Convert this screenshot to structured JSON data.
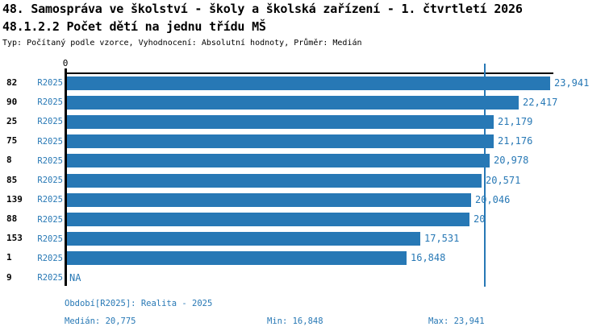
{
  "header": {
    "title": "48. Samospráva ve školství - školy a školská zařízení - 1. čtvrtletí 2026",
    "subtitle": "48.1.2.2 Počet dětí na jednu třídu MŠ",
    "meta": "Typ: Počítaný podle vzorce, Vyhodnocení: Absolutní hodnoty, Průměr: Medián"
  },
  "chart_data": {
    "type": "bar",
    "orientation": "horizontal",
    "title": "48.1.2.2 Počet dětí na jednu třídu MŠ",
    "x_axis": {
      "origin_label": "0",
      "min": 0,
      "max": 24200,
      "grid": false
    },
    "legend_position": "none",
    "categories": [
      "82",
      "90",
      "25",
      "75",
      "8",
      "85",
      "139",
      "88",
      "153",
      "1",
      "9"
    ],
    "rows": [
      {
        "category": "82",
        "period": "R2025",
        "value": 23941,
        "label": "23,941"
      },
      {
        "category": "90",
        "period": "R2025",
        "value": 22417,
        "label": "22,417"
      },
      {
        "category": "25",
        "period": "R2025",
        "value": 21179,
        "label": "21,179"
      },
      {
        "category": "75",
        "period": "R2025",
        "value": 21176,
        "label": "21,176"
      },
      {
        "category": "8",
        "period": "R2025",
        "value": 20978,
        "label": "20,978"
      },
      {
        "category": "85",
        "period": "R2025",
        "value": 20571,
        "label": "20,571"
      },
      {
        "category": "139",
        "period": "R2025",
        "value": 20046,
        "label": "20,046"
      },
      {
        "category": "88",
        "period": "R2025",
        "value": 19965,
        "label": "20"
      },
      {
        "category": "153",
        "period": "R2025",
        "value": 17531,
        "label": "17,531"
      },
      {
        "category": "1",
        "period": "R2025",
        "value": 16848,
        "label": "16,848"
      },
      {
        "category": "9",
        "period": "R2025",
        "value": null,
        "label": "NA"
      }
    ],
    "median_line": {
      "value": 20775,
      "label": "Medián",
      "color": "#2778b5"
    },
    "colors": {
      "bar": "#2778b5",
      "blue_text": "#2778b5",
      "axis": "#000000",
      "background": "#ffffff"
    }
  },
  "footer": {
    "period_line": "Období[R2025]: Realita - 2025",
    "median": "Medián: 20,775",
    "min": "Min: 16,848",
    "max": "Max: 23,941"
  }
}
